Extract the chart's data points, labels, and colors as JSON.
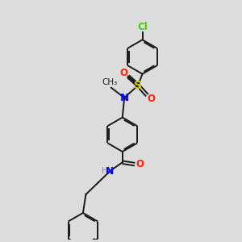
{
  "background_color": "#dcdcdc",
  "bond_color": "#1a1a1a",
  "colors": {
    "N": "#0000ff",
    "O": "#ff2200",
    "S": "#cccc00",
    "Cl": "#44cc00",
    "C": "#1a1a1a",
    "H": "#888888"
  },
  "figsize": [
    3.0,
    3.0
  ],
  "dpi": 100,
  "lw": 1.4,
  "fs": 8.5,
  "ring_r": 0.72
}
